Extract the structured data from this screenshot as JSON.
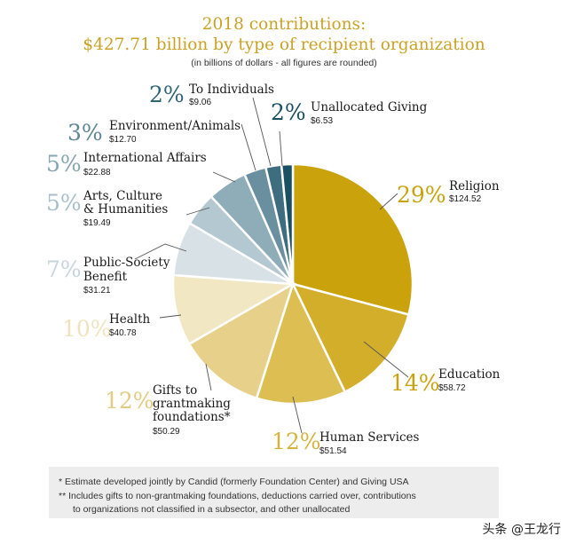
{
  "chart_data": {
    "type": "pie",
    "title": "2018 contributions:",
    "subtitle": "$427.71 billion by type of recipient organization",
    "note": "(in billions of dollars - all figures are rounded)",
    "unit": "billions of dollars",
    "slices": [
      {
        "pct": "29%",
        "label": [
          "Religion"
        ],
        "amount": "$124.52",
        "value": 124.52,
        "color": "#c9a20c",
        "pct_color": "#c9a20c"
      },
      {
        "pct": "14%",
        "label": [
          "Education"
        ],
        "amount": "$58.72",
        "value": 58.72,
        "color": "#d2ae2b",
        "pct_color": "#c9a20c"
      },
      {
        "pct": "12%",
        "label": [
          "Human Services"
        ],
        "amount": "$51.54",
        "value": 51.54,
        "color": "#dcbe52",
        "pct_color": "#d4b43e"
      },
      {
        "pct": "12%",
        "label": [
          "Gifts to",
          "grantmaking",
          "foundations*"
        ],
        "amount": "$50.29",
        "value": 50.29,
        "color": "#e7d18a",
        "pct_color": "#e2cb82"
      },
      {
        "pct": "10%",
        "label": [
          "Health"
        ],
        "amount": "$40.78",
        "value": 40.78,
        "color": "#f2e7c3",
        "pct_color": "#efe3bd"
      },
      {
        "pct": "7%",
        "label": [
          "Public-Society",
          "Benefit"
        ],
        "amount": "$31.21",
        "value": 31.21,
        "color": "#d7e1e6",
        "pct_color": "#c6d4db"
      },
      {
        "pct": "5%",
        "label": [
          "Arts, Culture",
          "& Humanities"
        ],
        "amount": "$19.49",
        "value": 19.49,
        "color": "#b4c8d1",
        "pct_color": "#a7bfca"
      },
      {
        "pct": "5%",
        "label": [
          "International Affairs"
        ],
        "amount": "$22.88",
        "value": 22.88,
        "color": "#8fadb9",
        "pct_color": "#86a6b3"
      },
      {
        "pct": "3%",
        "label": [
          "Environment/Animals"
        ],
        "amount": "$12.70",
        "value": 12.7,
        "color": "#6a8f9f",
        "pct_color": "#5f8696"
      },
      {
        "pct": "2%",
        "label": [
          "To Individuals"
        ],
        "amount": "$9.06",
        "value": 9.06,
        "color": "#3e6d80",
        "pct_color": "#2f6378"
      },
      {
        "pct": "2%",
        "label": [
          "Unallocated Giving"
        ],
        "amount": "$6.53",
        "value": 6.53,
        "color": "#1b4f63",
        "pct_color": "#1b4f63"
      }
    ],
    "footnotes": [
      "* Estimate developed jointly by Candid (formerly Foundation Center) and Giving USA",
      "** Includes gifts to non-grantmaking foundations, deductions carried over, contributions",
      "to organizations not classified in a subsector, and other unallocated"
    ]
  },
  "watermark": "头条 @王龙行"
}
